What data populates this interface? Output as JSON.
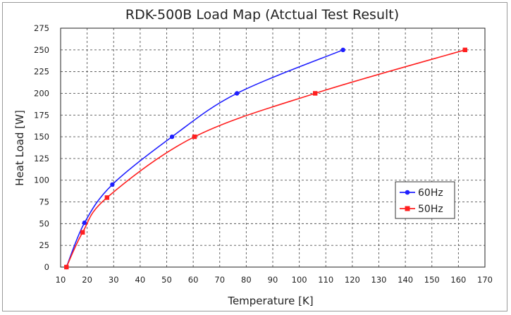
{
  "chart_data": {
    "type": "line",
    "title": "RDK-500B Load Map (Atctual Test Result)",
    "xlabel": "Temperature [K]",
    "ylabel": "Heat Load [W]",
    "xlim": [
      10,
      170
    ],
    "ylim": [
      0,
      275
    ],
    "xticks": [
      10,
      20,
      30,
      40,
      50,
      60,
      70,
      80,
      90,
      100,
      110,
      120,
      130,
      140,
      150,
      160,
      170
    ],
    "yticks": [
      0,
      25,
      50,
      75,
      100,
      125,
      150,
      175,
      200,
      225,
      250,
      275
    ],
    "grid": true,
    "legend_position": "right",
    "series": [
      {
        "name": "60Hz",
        "color": "#1f1fff",
        "marker": "circle",
        "points": [
          [
            12.2,
            0
          ],
          [
            19,
            51
          ],
          [
            29.5,
            95
          ],
          [
            52,
            150
          ],
          [
            76.5,
            200
          ],
          [
            116.5,
            250
          ]
        ]
      },
      {
        "name": "50Hz",
        "color": "#ff1f1f",
        "marker": "square",
        "points": [
          [
            12.2,
            0
          ],
          [
            18.3,
            40
          ],
          [
            27.5,
            80
          ],
          [
            60.5,
            150
          ],
          [
            106,
            200
          ],
          [
            162.5,
            250
          ]
        ]
      }
    ]
  }
}
